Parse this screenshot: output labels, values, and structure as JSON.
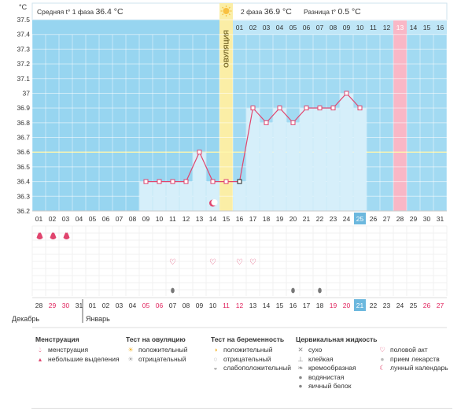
{
  "header": {
    "phase1_label": "Средняя t° 1 фаза",
    "phase1_value": "36.4 °C",
    "phase2_label": "2 фаза",
    "phase2_value": "36.9 °C",
    "diff_label": "Разница t°",
    "diff_value": "0.5 °C"
  },
  "axis_unit": "°C",
  "ovulation_label": "ОВУЛЯЦИЯ",
  "month_labels": {
    "dec": "Декабрь",
    "jan": "Январь"
  },
  "cycle_day_labels": [
    "01",
    "02",
    "03",
    "04",
    "05",
    "06",
    "07",
    "08",
    "09",
    "10",
    "11",
    "12",
    "13",
    "14",
    "15",
    "16"
  ],
  "colors": {
    "phase1_bg": "#97d5f0",
    "phase2_bg": "#a2daf2",
    "ovulation": "#fbeea6",
    "highlight_pink": "#f9b7c6",
    "line": "#e0456e",
    "bar": "#d6effa"
  },
  "chart_data": {
    "type": "line",
    "title": "",
    "xlabel": "",
    "ylabel": "°C",
    "ylim": [
      36.2,
      37.5
    ],
    "yticks": [
      "36.2",
      "36.3",
      "36.4",
      "36.5",
      "36.6",
      "36.7",
      "36.8",
      "36.9",
      "37",
      "37.1",
      "37.2",
      "37.3",
      "37.4",
      "37.5"
    ],
    "cycle_days": [
      "01",
      "02",
      "03",
      "04",
      "05",
      "06",
      "07",
      "08",
      "09",
      "10",
      "11",
      "12",
      "13",
      "14",
      "15",
      "16",
      "17",
      "18",
      "19",
      "20",
      "21",
      "22",
      "23",
      "24",
      "25",
      "26",
      "27",
      "28",
      "29",
      "30",
      "31"
    ],
    "calendar_dates": [
      "28",
      "29",
      "30",
      "31",
      "01",
      "02",
      "03",
      "04",
      "05",
      "06",
      "07",
      "08",
      "09",
      "10",
      "11",
      "12",
      "13",
      "14",
      "15",
      "16",
      "17",
      "18",
      "19",
      "20",
      "21",
      "22",
      "23",
      "24",
      "25",
      "26",
      "27"
    ],
    "red_dates_idx": [
      1,
      2,
      8,
      9,
      14,
      15,
      22,
      23,
      29,
      30
    ],
    "highlight_idx": 24,
    "pink_column_idx": 27,
    "ovulation_idx": 14,
    "coverline": 36.6,
    "series": [
      {
        "x": [
          9,
          10,
          11,
          12,
          13,
          14,
          15,
          16,
          17,
          18,
          19,
          20,
          21,
          22,
          23,
          24,
          25
        ],
        "values": [
          36.4,
          36.4,
          36.4,
          36.4,
          36.6,
          36.4,
          36.4,
          36.4,
          36.9,
          36.8,
          36.9,
          36.8,
          36.9,
          36.9,
          36.9,
          37.0,
          36.9
        ]
      }
    ],
    "menstruation_days": [
      1,
      2,
      3
    ],
    "intercourse_days": [
      11,
      14,
      16,
      17
    ],
    "lunar_day": 14,
    "fluid_days": [
      11,
      20,
      22
    ]
  },
  "legend": {
    "menstruation": {
      "title": "Менструация",
      "items": [
        "менструация",
        "небольшие выделения"
      ]
    },
    "ovulation_test": {
      "title": "Тест на овуляцию",
      "items": [
        "положительный",
        "отрицательный"
      ]
    },
    "pregnancy_test": {
      "title": "Тест на беременность",
      "items": [
        "положительный",
        "отрицательный",
        "слабоположительный"
      ]
    },
    "cervical": {
      "title": "Цервикальная жидкость",
      "items": [
        "сухо",
        "клейкая",
        "кремообразная",
        "водянистая",
        "яичный белок"
      ]
    },
    "other": {
      "items": [
        "половой акт",
        "прием лекарств",
        "лунный календарь"
      ]
    }
  }
}
